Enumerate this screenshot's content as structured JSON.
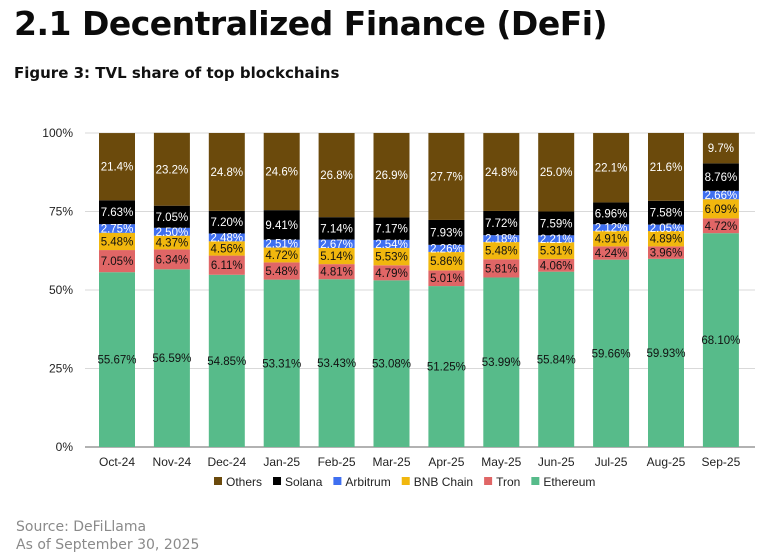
{
  "heading": "2.1 Decentralized Finance (DeFi)",
  "figure_title": "Figure 3: TVL share of top blockchains",
  "source": {
    "line1": "Source: DeFiLlama",
    "line2": "As of September 30, 2025"
  },
  "chart_data": {
    "type": "bar",
    "stacked": true,
    "title": "TVL share of top blockchains",
    "xlabel": "",
    "ylabel": "",
    "ylim": [
      0,
      100
    ],
    "yticks": [
      "0%",
      "25%",
      "50%",
      "75%",
      "100%"
    ],
    "ytick_values": [
      0,
      25,
      50,
      75,
      100
    ],
    "grid": true,
    "legend_position": "bottom",
    "categories": [
      "Oct-24",
      "Nov-24",
      "Dec-24",
      "Jan-25",
      "Feb-25",
      "Mar-25",
      "Apr-25",
      "May-25",
      "Jun-25",
      "Jul-25",
      "Aug-25",
      "Sep-25"
    ],
    "series": [
      {
        "name": "Ethereum",
        "color": "#57bb8a",
        "label_color": "#111111",
        "values": [
          55.67,
          56.59,
          54.85,
          53.31,
          53.43,
          53.08,
          51.25,
          53.99,
          55.84,
          59.66,
          59.93,
          68.1
        ],
        "labels": [
          "55.67%",
          "56.59%",
          "54.85%",
          "53.31%",
          "53.43%",
          "53.08%",
          "51.25%",
          "53.99%",
          "55.84%",
          "59.66%",
          "59.93%",
          "68.10%"
        ]
      },
      {
        "name": "Tron",
        "color": "#e06666",
        "label_color": "#111111",
        "values": [
          7.05,
          6.34,
          6.11,
          5.48,
          4.81,
          4.79,
          5.01,
          5.81,
          4.06,
          4.24,
          3.96,
          4.72
        ],
        "labels": [
          "7.05%",
          "6.34%",
          "6.11%",
          "5.48%",
          "4.81%",
          "4.79%",
          "5.01%",
          "5.81%",
          "4.06%",
          "4.24%",
          "3.96%",
          "4.72%"
        ]
      },
      {
        "name": "BNB Chain",
        "color": "#f1b70e",
        "label_color": "#111111",
        "values": [
          5.48,
          4.37,
          4.56,
          4.72,
          5.14,
          5.53,
          5.86,
          5.48,
          5.31,
          4.91,
          4.89,
          6.09
        ],
        "labels": [
          "5.48%",
          "4.37%",
          "4.56%",
          "4.72%",
          "5.14%",
          "5.53%",
          "5.86%",
          "5.48%",
          "5.31%",
          "4.91%",
          "4.89%",
          "6.09%"
        ]
      },
      {
        "name": "Arbitrum",
        "color": "#3f6ff0",
        "label_color": "#ffffff",
        "values": [
          2.75,
          2.5,
          2.48,
          2.51,
          2.67,
          2.54,
          2.26,
          2.18,
          2.21,
          2.12,
          2.05,
          2.66
        ],
        "labels": [
          "2.75%",
          "2.50%",
          "2.48%",
          "2.51%",
          "2.67%",
          "2.54%",
          "2.26%",
          "2.18%",
          "2.21%",
          "2.12%",
          "2.05%",
          "2.66%"
        ]
      },
      {
        "name": "Solana",
        "color": "#000000",
        "label_color": "#ffffff",
        "values": [
          7.63,
          7.05,
          7.2,
          9.41,
          7.14,
          7.17,
          7.93,
          7.72,
          7.59,
          6.96,
          7.58,
          8.76
        ],
        "labels": [
          "7.63%",
          "7.05%",
          "7.20%",
          "9.41%",
          "7.14%",
          "7.17%",
          "7.93%",
          "7.72%",
          "7.59%",
          "6.96%",
          "7.58%",
          "8.76%"
        ]
      },
      {
        "name": "Others",
        "color": "#6b4a0c",
        "label_color": "#ffffff",
        "values": [
          21.4,
          23.2,
          24.8,
          24.6,
          26.8,
          26.9,
          27.7,
          24.8,
          25.0,
          22.1,
          21.6,
          9.7
        ],
        "labels": [
          "21.4%",
          "23.2%",
          "24.8%",
          "24.6%",
          "26.8%",
          "26.9%",
          "27.7%",
          "24.8%",
          "25.0%",
          "22.1%",
          "21.6%",
          "9.7%"
        ]
      }
    ],
    "legend_order": [
      "Others",
      "Solana",
      "Arbitrum",
      "BNB Chain",
      "Tron",
      "Ethereum"
    ]
  }
}
